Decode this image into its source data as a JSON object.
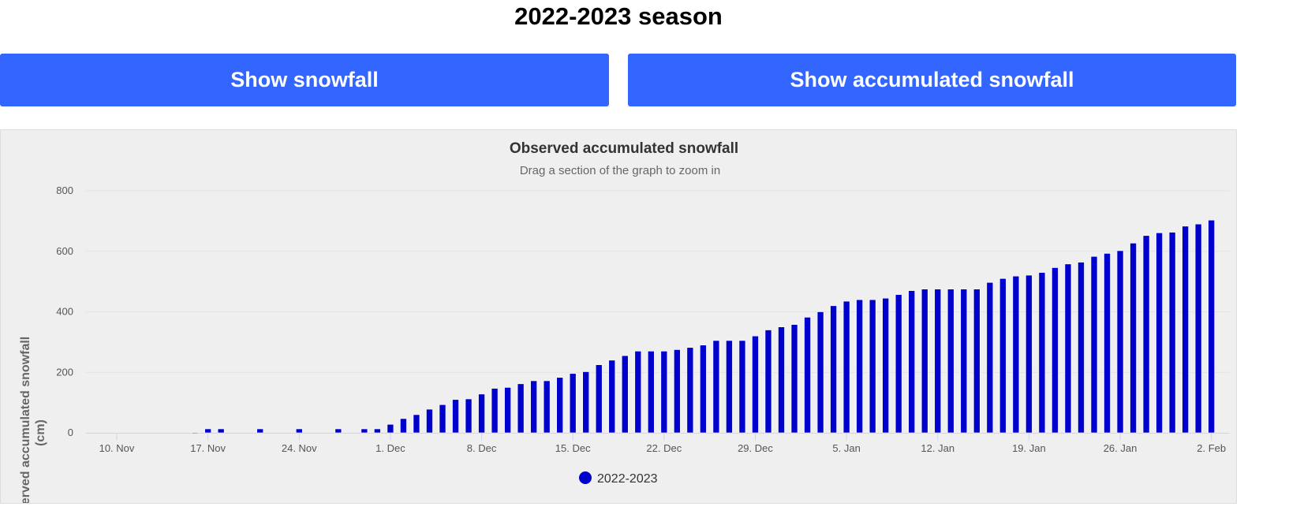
{
  "page": {
    "title": "2022-2023 season"
  },
  "buttons": {
    "snowfall": "Show snowfall",
    "accumulated": "Show accumulated snowfall"
  },
  "colors": {
    "button": "#3366ff",
    "bar": "#0000cc",
    "panel": "#efefef"
  },
  "chart_data": {
    "type": "bar",
    "title": "Observed accumulated snowfall",
    "subtitle": "Drag a section of the graph to zoom in",
    "ylabel": "Observed accumulated snowfall (cm)",
    "ylabel_lines": [
      "Observed accumulated snowfall",
      "(cm)"
    ],
    "xlabel": "",
    "ylim": [
      0,
      800
    ],
    "yticks": [
      "0",
      "200",
      "400",
      "600",
      "800"
    ],
    "xticks": [
      "10. Nov",
      "17. Nov",
      "24. Nov",
      "1. Dec",
      "8. Dec",
      "15. Dec",
      "22. Dec",
      "29. Dec",
      "5. Jan",
      "12. Jan",
      "19. Jan",
      "26. Jan",
      "2. Feb"
    ],
    "x_start": "2022-11-16",
    "x_step_days": 1,
    "series": [
      {
        "name": "2022-2023",
        "values": [
          1,
          13,
          13,
          0,
          0,
          13,
          0,
          0,
          13,
          0,
          0,
          13,
          0,
          13,
          13,
          28,
          47,
          60,
          78,
          93,
          110,
          112,
          128,
          147,
          150,
          162,
          172,
          172,
          183,
          196,
          202,
          225,
          240,
          255,
          270,
          270,
          270,
          275,
          282,
          290,
          305,
          305,
          305,
          320,
          340,
          350,
          358,
          382,
          400,
          420,
          435,
          440,
          440,
          445,
          457,
          470,
          475,
          475,
          475,
          475,
          475,
          497,
          510,
          518,
          521,
          530,
          546,
          558,
          564,
          583,
          593,
          602,
          627,
          652,
          661,
          663,
          683,
          690,
          703
        ]
      }
    ],
    "legend": "bottom-center",
    "grid": true
  }
}
